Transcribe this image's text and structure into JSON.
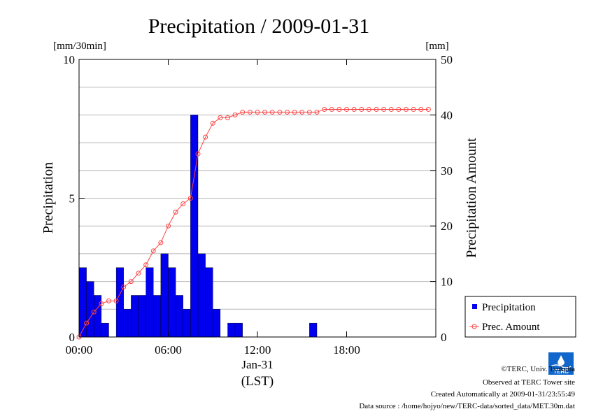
{
  "chart_data": {
    "type": "bar+line",
    "title": "Precipitation / 2009-01-31",
    "left_unit": "[mm/30min]",
    "right_unit": "[mm]",
    "ylabel_left": "Precipitation",
    "ylabel_right": "Precipitation Amount",
    "ylim_left": [
      0,
      10
    ],
    "ylim_right": [
      0,
      50
    ],
    "yticks_left": [
      "0",
      "5",
      "10"
    ],
    "yticks_right": [
      "0",
      "10",
      "20",
      "30",
      "40",
      "50"
    ],
    "x_range_hours": [
      0,
      24
    ],
    "xticks": [
      {
        "value": 0,
        "label": "00:00"
      },
      {
        "value": 6,
        "label": "06:00"
      },
      {
        "value": 12,
        "label": "12:00"
      },
      {
        "value": 18,
        "label": "18:00"
      }
    ],
    "xlabel_date": "Jan-31",
    "xlabel_tz": "(LST)",
    "grid": true,
    "legend_position": "bottom-right",
    "series": [
      {
        "name": "Precipitation",
        "kind": "bar",
        "axis": "left",
        "color": "#0000ee",
        "interval_hours": 0.5,
        "values": [
          2.5,
          2.0,
          1.5,
          0.5,
          0,
          2.5,
          1.0,
          1.5,
          1.5,
          2.5,
          1.5,
          3.0,
          2.5,
          1.5,
          1.0,
          8.0,
          3.0,
          2.5,
          1.0,
          0,
          0.5,
          0.5,
          0,
          0,
          0,
          0,
          0,
          0,
          0,
          0,
          0,
          0.5,
          0,
          0,
          0,
          0,
          0,
          0,
          0,
          0,
          0,
          0,
          0,
          0,
          0,
          0,
          0,
          0
        ]
      },
      {
        "name": "Prec. Amount",
        "kind": "line",
        "axis": "right",
        "color": "#ff4444",
        "x_start_hours": 0,
        "interval_hours": 0.5,
        "values": [
          0,
          2.5,
          4.5,
          6.0,
          6.5,
          6.5,
          9.0,
          10.0,
          11.5,
          13.0,
          15.5,
          17.0,
          20.0,
          22.5,
          24.0,
          25.0,
          33.0,
          36.0,
          38.5,
          39.5,
          39.5,
          40.0,
          40.5,
          40.5,
          40.5,
          40.5,
          40.5,
          40.5,
          40.5,
          40.5,
          40.5,
          40.5,
          40.5,
          41.0,
          41.0,
          41.0,
          41.0,
          41.0,
          41.0,
          41.0,
          41.0,
          41.0,
          41.0,
          41.0,
          41.0,
          41.0,
          41.0,
          41.0
        ]
      }
    ]
  },
  "footer": {
    "copyright": "©TERC, Univ. Tsukuba",
    "observed": "Observed at TERC Tower site",
    "created": "Created Automatically at 2009-01-31/23:55:49",
    "source": "Data source : /home/hojyo/new/TERC-data/sorted_data/MET.30m.dat",
    "logo_text": "TERC"
  }
}
